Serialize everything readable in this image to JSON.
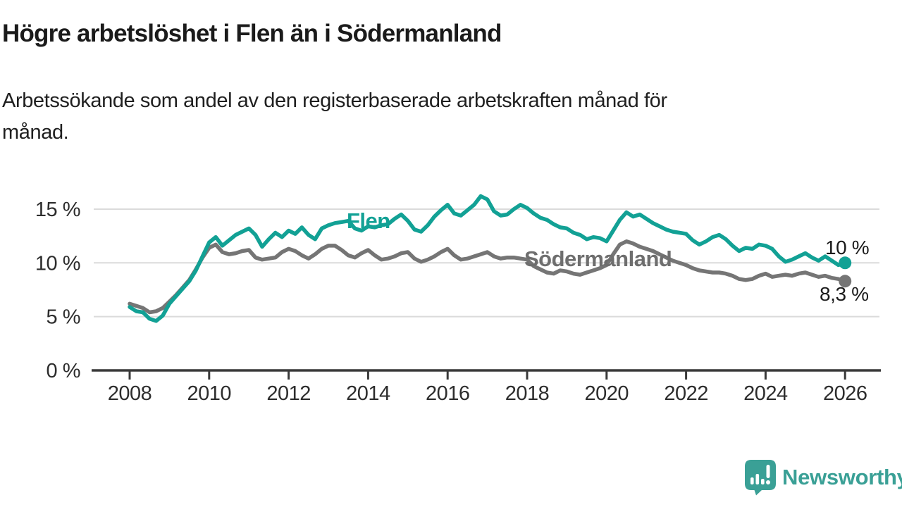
{
  "header": {
    "title": "Högre arbetslöshet i Flen än i Södermanland",
    "subtitle_lines": [
      "Arbetssökande som andel av den registerbaserade arbetskraften månad för",
      "månad."
    ]
  },
  "chart_data": {
    "type": "line",
    "title": "Högre arbetslöshet i Flen än i Södermanland",
    "subtitle": "Arbetssökande som andel av den registerbaserade arbetskraften månad för månad.",
    "unit": "%",
    "x_axis": {
      "ticks": [
        2008,
        2010,
        2012,
        2014,
        2016,
        2018,
        2020,
        2022,
        2024,
        2026
      ],
      "tick_labels": [
        "2008",
        "2010",
        "2012",
        "2014",
        "2016",
        "2018",
        "2020",
        "2022",
        "2024",
        "2026"
      ],
      "range": [
        2007.0,
        2026.9
      ]
    },
    "y_axis": {
      "ticks": [
        0,
        5,
        10,
        15
      ],
      "tick_labels": [
        "0 %",
        "5 %",
        "10 %",
        "15 %"
      ],
      "range": [
        0,
        16.5
      ],
      "grid": true
    },
    "series": [
      {
        "name": "Södermanland",
        "color": "#757575",
        "label": "Södermanland",
        "end_label": "8,3 %",
        "end_value": 8.3,
        "x_start": 2008.0,
        "x_step": 0.166667,
        "values": [
          6.2,
          6.0,
          5.8,
          5.4,
          5.5,
          5.8,
          6.4,
          7.0,
          7.7,
          8.4,
          9.4,
          10.5,
          11.4,
          11.7,
          11.0,
          10.8,
          10.9,
          11.1,
          11.2,
          10.5,
          10.3,
          10.4,
          10.5,
          11.0,
          11.3,
          11.1,
          10.7,
          10.4,
          10.8,
          11.3,
          11.6,
          11.6,
          11.2,
          10.7,
          10.5,
          10.9,
          11.2,
          10.7,
          10.3,
          10.4,
          10.6,
          10.9,
          11.0,
          10.4,
          10.1,
          10.3,
          10.6,
          11.0,
          11.3,
          10.7,
          10.3,
          10.4,
          10.6,
          10.8,
          11.0,
          10.6,
          10.4,
          10.5,
          10.5,
          10.4,
          10.3,
          9.7,
          9.4,
          9.1,
          9.0,
          9.3,
          9.2,
          9.0,
          8.9,
          9.1,
          9.3,
          9.5,
          9.8,
          10.8,
          11.7,
          12.0,
          11.8,
          11.5,
          11.3,
          11.1,
          10.8,
          10.5,
          10.2,
          10.0,
          9.8,
          9.5,
          9.3,
          9.2,
          9.1,
          9.1,
          9.0,
          8.8,
          8.5,
          8.4,
          8.5,
          8.8,
          9.0,
          8.7,
          8.8,
          8.9,
          8.8,
          9.0,
          9.1,
          8.9,
          8.7,
          8.8,
          8.6,
          8.5,
          8.3
        ]
      },
      {
        "name": "Flen",
        "color": "#12a195",
        "label": "Flen",
        "end_label": "10 %",
        "end_value": 10.0,
        "x_start": 2008.0,
        "x_step": 0.166667,
        "values": [
          5.9,
          5.5,
          5.4,
          4.8,
          4.6,
          5.1,
          6.2,
          6.9,
          7.6,
          8.3,
          9.3,
          10.6,
          11.9,
          12.4,
          11.6,
          12.1,
          12.6,
          12.9,
          13.2,
          12.6,
          11.5,
          12.2,
          12.8,
          12.4,
          13.0,
          12.7,
          13.3,
          12.6,
          12.2,
          13.2,
          13.5,
          13.7,
          13.8,
          13.9,
          13.2,
          13.0,
          13.4,
          13.3,
          13.5,
          13.6,
          14.1,
          14.5,
          13.9,
          13.1,
          12.9,
          13.5,
          14.3,
          14.9,
          15.4,
          14.6,
          14.4,
          14.9,
          15.4,
          16.2,
          15.9,
          14.8,
          14.4,
          14.5,
          15.0,
          15.4,
          15.1,
          14.6,
          14.2,
          14.0,
          13.6,
          13.3,
          13.2,
          12.8,
          12.6,
          12.2,
          12.4,
          12.3,
          12.0,
          13.0,
          14.0,
          14.7,
          14.3,
          14.5,
          14.1,
          13.7,
          13.4,
          13.1,
          12.9,
          12.8,
          12.7,
          12.1,
          11.7,
          12.0,
          12.4,
          12.6,
          12.2,
          11.6,
          11.1,
          11.4,
          11.3,
          11.7,
          11.6,
          11.3,
          10.6,
          10.1,
          10.3,
          10.6,
          10.9,
          10.5,
          10.2,
          10.6,
          10.2,
          9.8,
          10.0
        ]
      }
    ],
    "annotations": {
      "flen_label": "Flen",
      "sodermanland_label": "Södermanland",
      "flen_end_label": "10 %",
      "sodermanland_end_label": "8,3 %"
    },
    "legend_position": "inline-labels"
  },
  "footer": {
    "brand": "Newsworthy"
  },
  "colors": {
    "flen_line": "#12a195",
    "sodermanland_line": "#757575",
    "sodermanland_label": "#6e6e6e",
    "grid": "#dbdbdb",
    "axis": "#3a3a3a",
    "tick_text": "#2d2d2d",
    "text": "#1b1b1b",
    "brand": "#3aa096"
  }
}
